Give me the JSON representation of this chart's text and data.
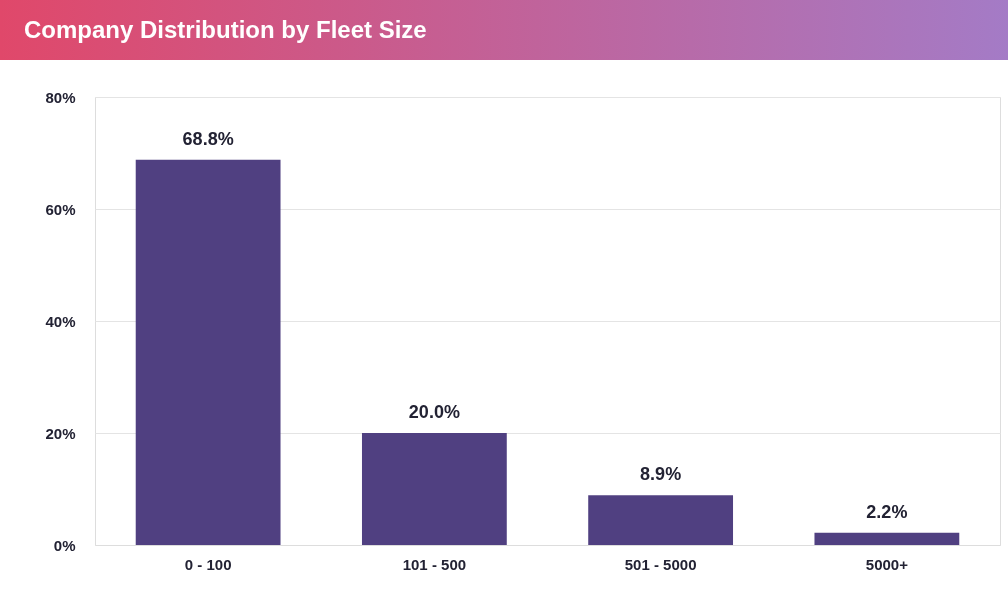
{
  "chart_data": {
    "type": "bar",
    "title": "Company Distribution by Fleet Size",
    "categories": [
      "0 - 100",
      "101 - 500",
      "501 - 5000",
      "5000+"
    ],
    "values": [
      68.8,
      20.0,
      8.9,
      2.2
    ],
    "value_labels": [
      "68.8%",
      "20.0%",
      "8.9%",
      "2.2%"
    ],
    "color": "#504081",
    "ylim": [
      0,
      80
    ],
    "yticks": [
      {
        "value": 0,
        "label": "0%"
      },
      {
        "value": 20,
        "label": "20%"
      },
      {
        "value": 40,
        "label": "40%"
      },
      {
        "value": 60,
        "label": "60%"
      },
      {
        "value": 80,
        "label": "80%"
      }
    ],
    "grid": "y"
  }
}
